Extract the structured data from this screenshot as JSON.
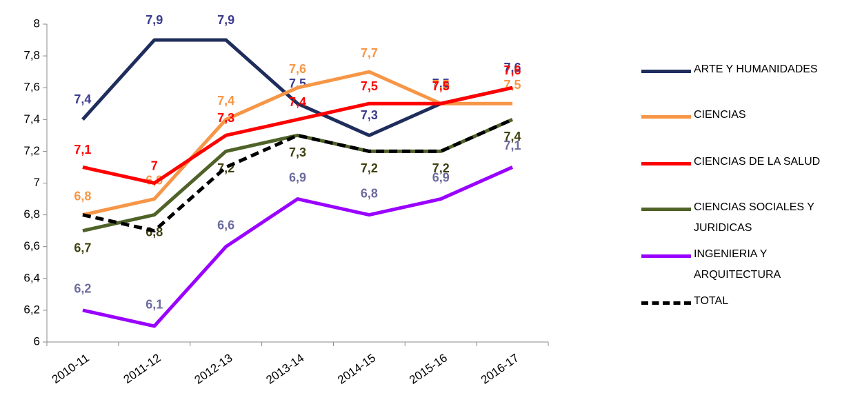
{
  "chart_data": {
    "type": "line",
    "categories": [
      "2010-11",
      "2011-12",
      "2012-13",
      "2013-14",
      "2014-15",
      "2015-16",
      "2016-17"
    ],
    "ylim": [
      6,
      8
    ],
    "yticks": [
      6,
      {
        "value": 6.2,
        "label": "6,2"
      },
      {
        "value": 6.4,
        "label": "6,4"
      },
      {
        "value": 6.6,
        "label": "6,6"
      },
      {
        "value": 6.8,
        "label": "6,8"
      },
      7,
      {
        "value": 7.2,
        "label": "7,2"
      },
      {
        "value": 7.4,
        "label": "7,4"
      },
      {
        "value": 7.6,
        "label": "7,6"
      },
      {
        "value": 7.8,
        "label": "7,8"
      },
      8
    ],
    "grid": false,
    "legend": "right",
    "series": [
      {
        "name": "ARTE Y HUMANIDADES",
        "color": "#1f2d5c",
        "label_color": "#3b3b8f",
        "values": [
          7.4,
          7.9,
          7.9,
          7.5,
          7.3,
          7.5,
          7.6
        ],
        "value_labels": [
          "7,4",
          "7,9",
          "7,9",
          "7,5",
          "7,3",
          "7,5",
          "7,6"
        ]
      },
      {
        "name": "CIENCIAS",
        "color": "#f79646",
        "label_color": "#f79646",
        "values": [
          6.8,
          6.9,
          7.4,
          7.6,
          7.7,
          7.5,
          7.5
        ],
        "value_labels": [
          "6,8",
          "6,9",
          "7,4",
          "7,6",
          "7,7",
          "7,5",
          "7,5"
        ]
      },
      {
        "name": "CIENCIAS DE LA SALUD",
        "color": "#ff0000",
        "label_color": "#ff0000",
        "values": [
          7.1,
          7,
          7.3,
          7.4,
          7.5,
          7.5,
          7.6
        ],
        "value_labels": [
          "7,1",
          "7",
          "7,3",
          "7,4",
          "7,5",
          "7,5",
          "7,6"
        ]
      },
      {
        "name": "CIENCIAS  SOCIALES Y JURIDICAS",
        "color": "#4f6228",
        "label_color": "#3f3f10",
        "values": [
          6.7,
          6.8,
          7.2,
          7.3,
          7.2,
          7.2,
          7.4
        ],
        "value_labels": [
          "6,7",
          "6,8",
          "7,2",
          "7,3",
          "7,2",
          "7,2",
          "7,4"
        ]
      },
      {
        "name": "INGENIERIA Y ARQUITECTURA",
        "color": "#9900ff",
        "label_color": "#6b6b9e",
        "values": [
          6.2,
          6.1,
          6.6,
          6.9,
          6.8,
          6.9,
          7.1
        ],
        "value_labels": [
          "6,2",
          "6,1",
          "6,6",
          "6,9",
          "6,8",
          "6,9",
          "7,1"
        ]
      },
      {
        "name": "TOTAL",
        "color": "#000000",
        "dashed": true,
        "values": [
          6.8,
          6.7,
          7.1,
          7.3,
          7.2,
          7.2,
          7.4
        ]
      }
    ]
  }
}
